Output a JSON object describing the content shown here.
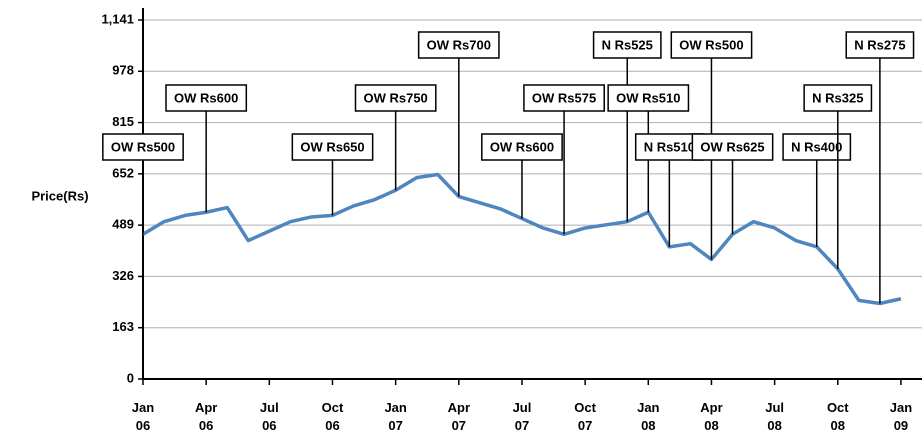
{
  "chart_data": {
    "type": "line",
    "ylabel": "Price(Rs)",
    "x": [
      "2006-01",
      "2006-02",
      "2006-03",
      "2006-04",
      "2006-05",
      "2006-06",
      "2006-07",
      "2006-08",
      "2006-09",
      "2006-10",
      "2006-11",
      "2006-12",
      "2007-01",
      "2007-02",
      "2007-03",
      "2007-04",
      "2007-05",
      "2007-06",
      "2007-07",
      "2007-08",
      "2007-09",
      "2007-10",
      "2007-11",
      "2007-12",
      "2008-01",
      "2008-02",
      "2008-03",
      "2008-04",
      "2008-05",
      "2008-06",
      "2008-07",
      "2008-08",
      "2008-09",
      "2008-10",
      "2008-11",
      "2008-12",
      "2009-01"
    ],
    "series": [
      {
        "name": "Price",
        "color": "#4f86c0",
        "values": [
          460,
          500,
          520,
          530,
          545,
          440,
          470,
          500,
          515,
          520,
          550,
          570,
          600,
          640,
          650,
          580,
          560,
          540,
          510,
          480,
          460,
          480,
          490,
          500,
          530,
          420,
          430,
          380,
          460,
          500,
          480,
          440,
          420,
          350,
          250,
          240,
          255
        ]
      }
    ],
    "xlim": [
      "2006-01",
      "2009-02"
    ],
    "xticks": [
      {
        "value": "2006-01",
        "label": "Jan 06"
      },
      {
        "value": "2006-04",
        "label": "Apr 06"
      },
      {
        "value": "2006-07",
        "label": "Jul 06"
      },
      {
        "value": "2006-10",
        "label": "Oct 06"
      },
      {
        "value": "2007-01",
        "label": "Jan 07"
      },
      {
        "value": "2007-04",
        "label": "Apr 07"
      },
      {
        "value": "2007-07",
        "label": "Jul 07"
      },
      {
        "value": "2007-10",
        "label": "Oct 07"
      },
      {
        "value": "2008-01",
        "label": "Jan 08"
      },
      {
        "value": "2008-04",
        "label": "Apr 08"
      },
      {
        "value": "2008-07",
        "label": "Jul 08"
      },
      {
        "value": "2008-10",
        "label": "Oct 08"
      },
      {
        "value": "2009-01",
        "label": "Jan 09"
      }
    ],
    "ylim": [
      0,
      1141
    ],
    "yticks": [
      0,
      163,
      326,
      489,
      652,
      815,
      978,
      {
        "value": 1141,
        "label": "1,141"
      }
    ],
    "grid": true,
    "annotations": [
      {
        "text": "OW Rs500",
        "x": "2006-01"
      },
      {
        "text": "OW Rs600",
        "x": "2006-04"
      },
      {
        "text": "OW Rs650",
        "x": "2006-10"
      },
      {
        "text": "OW Rs750",
        "x": "2007-01"
      },
      {
        "text": "OW Rs700",
        "x": "2007-04"
      },
      {
        "text": "OW Rs600",
        "x": "2007-07"
      },
      {
        "text": "OW Rs575",
        "x": "2007-09"
      },
      {
        "text": "N Rs525",
        "x": "2007-12"
      },
      {
        "text": "OW Rs510",
        "x": "2008-01"
      },
      {
        "text": "N Rs510",
        "x": "2008-02"
      },
      {
        "text": "OW Rs500",
        "x": "2008-04"
      },
      {
        "text": "OW Rs625",
        "x": "2008-05"
      },
      {
        "text": "N Rs400",
        "x": "2008-09"
      },
      {
        "text": "N Rs325",
        "x": "2008-10"
      },
      {
        "text": "N Rs275",
        "x": "2008-12"
      }
    ]
  }
}
